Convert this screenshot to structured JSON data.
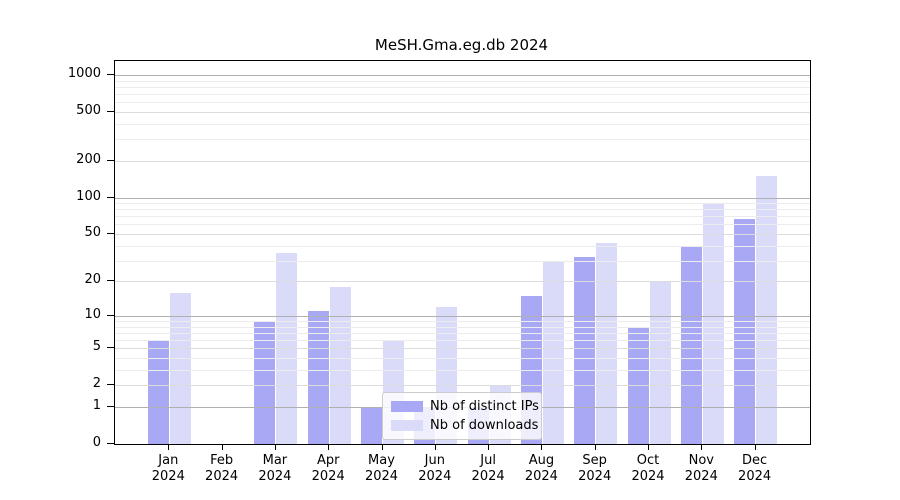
{
  "title": "MeSH.Gma.eg.db 2024",
  "year": "2024",
  "chart_data": {
    "type": "bar",
    "title": "MeSH.Gma.eg.db 2024",
    "categories": [
      "Jan 2024",
      "Feb 2024",
      "Mar 2024",
      "Apr 2024",
      "May 2024",
      "Jun 2024",
      "Jul 2024",
      "Aug 2024",
      "Sep 2024",
      "Oct 2024",
      "Nov 2024",
      "Dec 2024"
    ],
    "month_labels": [
      "Jan",
      "Feb",
      "Mar",
      "Apr",
      "May",
      "Jun",
      "Jul",
      "Aug",
      "Sep",
      "Oct",
      "Nov",
      "Dec"
    ],
    "series": [
      {
        "name": "Nb of distinct IPs",
        "color": "#a8a8f5",
        "values": [
          6,
          0,
          9,
          11,
          1,
          1,
          1,
          15,
          32,
          8,
          39,
          67
        ]
      },
      {
        "name": "Nb of downloads",
        "color": "#dadaf9",
        "values": [
          16,
          0,
          35,
          18,
          6,
          12,
          2,
          29,
          42,
          20,
          88,
          150
        ]
      }
    ],
    "xlabel": "",
    "ylabel": "",
    "y_scale": "log10(1+x)",
    "y_ticks": [
      0,
      1,
      2,
      5,
      10,
      20,
      50,
      100,
      200,
      500,
      1000
    ],
    "y_minor_ticks": [
      3,
      4,
      6,
      7,
      8,
      9,
      30,
      40,
      60,
      70,
      80,
      90,
      300,
      400,
      600,
      700,
      800,
      900
    ],
    "ylim": [
      0,
      1250
    ],
    "grid": true,
    "legend_position": "inside-bottom-center"
  },
  "legend": {
    "items": [
      {
        "label": "Nb of distinct IPs",
        "color": "#a8a8f5"
      },
      {
        "label": "Nb of downloads",
        "color": "#dadaf9"
      }
    ]
  },
  "colors": {
    "ips_bar": "#a8a8f5",
    "downloads_bar": "#dadaf9",
    "grid_decade": "#b0b0b0",
    "grid_labeled": "#dcdcdc",
    "grid_minor": "#ececec",
    "axis": "#000000",
    "legend_border": "#cccccc"
  }
}
